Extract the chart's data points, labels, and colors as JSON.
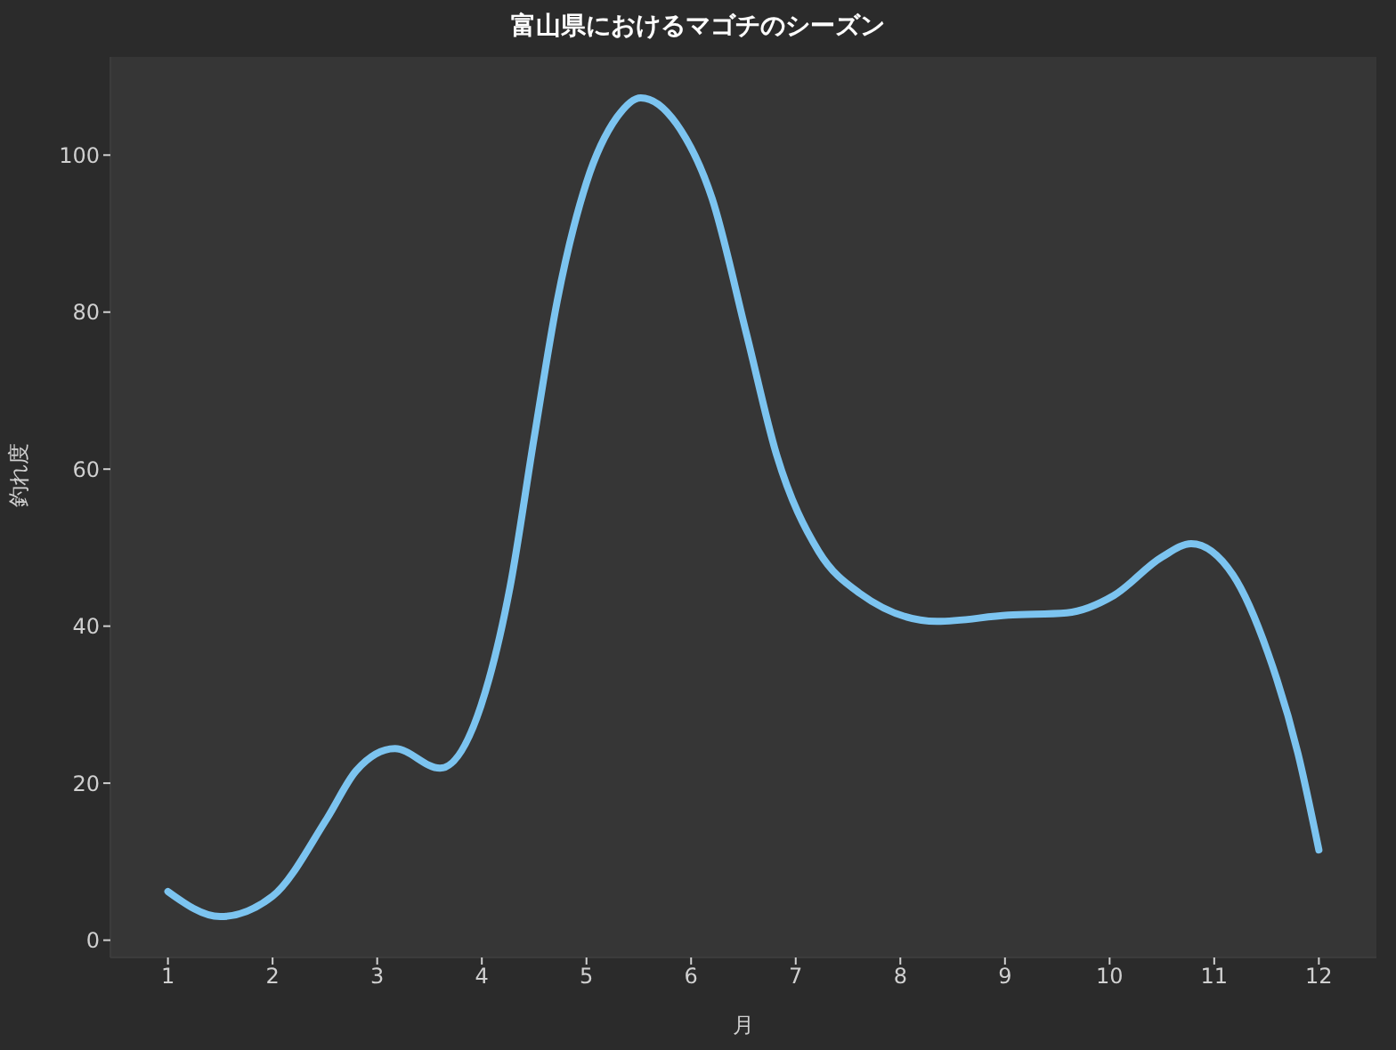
{
  "chart_data": {
    "type": "line",
    "title": "富山県におけるマゴチのシーズン",
    "xlabel": "月",
    "ylabel": "釣れ度",
    "x": [
      1,
      1.5,
      2,
      2.52,
      2.8,
      3.17,
      3.6,
      3.99,
      4.27,
      4.5,
      4.72,
      5,
      5.29,
      5.52,
      5.86,
      6.2,
      6.53,
      6.82,
      7.22,
      7.61,
      8.35,
      9.03,
      9.59,
      10.04,
      10.5,
      10.78,
      11.18,
      11.51,
      11.8,
      12
    ],
    "series": [
      {
        "color": "#7cc4f0",
        "values": [
          6.2,
          3,
          5.6,
          15.5,
          21.6,
          24.4,
          21.9,
          29.8,
          45,
          64,
          81.4,
          96.5,
          104.8,
          107.3,
          104,
          94.5,
          77.2,
          61.7,
          49.5,
          44.2,
          40.6,
          41.4,
          41.7,
          43.9,
          48.8,
          50.5,
          46.5,
          36.7,
          23.8,
          11.5
        ]
      }
    ],
    "xlim": [
      0.45,
      12.55
    ],
    "ylim": [
      -2.2,
      112.5
    ],
    "xticks": [
      1,
      2,
      3,
      4,
      5,
      6,
      7,
      8,
      9,
      10,
      11,
      12
    ],
    "yticks": [
      0,
      20,
      40,
      60,
      80,
      100
    ],
    "grid": false,
    "legend": false,
    "line_style": "solid"
  }
}
